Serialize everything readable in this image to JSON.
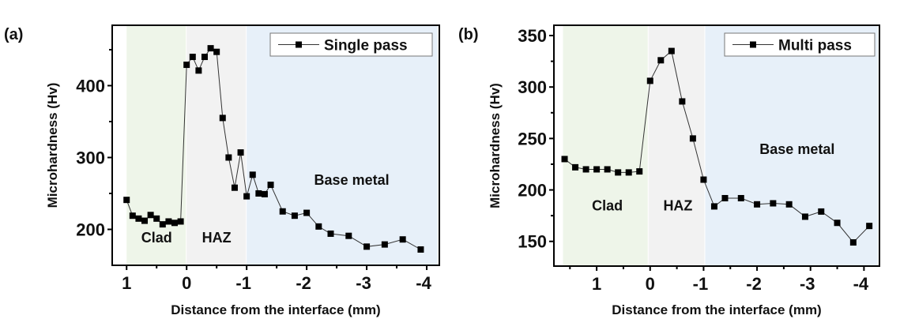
{
  "chart_data": [
    {
      "panel_label": "(a)",
      "type": "line",
      "title": "",
      "xlabel": "Distance from the interface (mm)",
      "ylabel": "Microhardness (Hv)",
      "xlim": [
        1.24,
        -4.21
      ],
      "ylim": [
        150,
        484
      ],
      "xticks": [
        1,
        0,
        -1,
        -2,
        -3,
        -4
      ],
      "xtick_labels": [
        "1",
        "0",
        "-1",
        "-2",
        "-3",
        "-4"
      ],
      "yticks": [
        200,
        300,
        400
      ],
      "ytick_labels": [
        "200",
        "300",
        "400"
      ],
      "y_minor_ticks": [
        250,
        350,
        450
      ],
      "x_minor_ticks": [
        0.5,
        -0.5,
        -1.5,
        -2.5,
        -3.5
      ],
      "grid": false,
      "legend_position": "top-right",
      "regions": [
        {
          "label": "Clad",
          "from": 1.0,
          "to": 0.0,
          "color": "#eef5e9",
          "label_x": 0.5,
          "label_y": 182
        },
        {
          "label": "HAZ",
          "from": 0.0,
          "to": -1.0,
          "color": "#f2f2f2",
          "label_x": -0.5,
          "label_y": 182
        },
        {
          "label": "Base metal",
          "from": -1.0,
          "to": -4.21,
          "color": "#e7f0f9",
          "label_x": -2.75,
          "label_y": 262
        }
      ],
      "series": [
        {
          "name": "Single pass",
          "color": "#000000",
          "x": [
            1.0,
            0.9,
            0.8,
            0.7,
            0.6,
            0.5,
            0.4,
            0.3,
            0.2,
            0.1,
            0.0,
            -0.1,
            -0.2,
            -0.3,
            -0.4,
            -0.5,
            -0.6,
            -0.7,
            -0.8,
            -0.9,
            -1.0,
            -1.1,
            -1.2,
            -1.3,
            -1.4,
            -1.6,
            -1.8,
            -2.0,
            -2.2,
            -2.4,
            -2.7,
            -3.0,
            -3.3,
            -3.6,
            -3.9
          ],
          "y": [
            241,
            219,
            215,
            212,
            220,
            215,
            207,
            211,
            209,
            211,
            429,
            440,
            421,
            440,
            452,
            447,
            355,
            300,
            258,
            307,
            246,
            276,
            250,
            249,
            262,
            225,
            219,
            223,
            204,
            194,
            191,
            176,
            179,
            186,
            172
          ]
        }
      ]
    },
    {
      "panel_label": "(b)",
      "type": "line",
      "title": "",
      "xlabel": "Distance from the interface (mm)",
      "ylabel": "Microhardness (Hv)",
      "xlim": [
        1.8,
        -4.29
      ],
      "ylim": [
        126,
        360
      ],
      "xticks": [
        1,
        0,
        -1,
        -2,
        -3,
        -4
      ],
      "xtick_labels": [
        "1",
        "0",
        "-1",
        "-2",
        "-3",
        "-4"
      ],
      "yticks": [
        150,
        200,
        250,
        300,
        350
      ],
      "ytick_labels": [
        "150",
        "200",
        "250",
        "300",
        "350"
      ],
      "y_minor_ticks": [
        175,
        225,
        275,
        325
      ],
      "x_minor_ticks": [
        1.5,
        0.5,
        -0.5,
        -1.5,
        -2.5,
        -3.5
      ],
      "grid": false,
      "legend_position": "top-right",
      "regions": [
        {
          "label": "Clad",
          "from": 1.63,
          "to": 0.03,
          "color": "#eef5e9",
          "label_x": 0.8,
          "label_y": 180
        },
        {
          "label": "HAZ",
          "from": 0.03,
          "to": -1.03,
          "color": "#f2f2f2",
          "label_x": -0.52,
          "label_y": 180
        },
        {
          "label": "Base metal",
          "from": -1.03,
          "to": -4.29,
          "color": "#e7f0f9",
          "label_x": -2.75,
          "label_y": 235
        }
      ],
      "series": [
        {
          "name": "Multi pass",
          "color": "#000000",
          "x": [
            1.6,
            1.4,
            1.2,
            1.0,
            0.8,
            0.6,
            0.4,
            0.2,
            0.0,
            -0.2,
            -0.4,
            -0.6,
            -0.8,
            -1.0,
            -1.2,
            -1.4,
            -1.7,
            -2.0,
            -2.3,
            -2.6,
            -2.9,
            -3.2,
            -3.5,
            -3.8,
            -4.1
          ],
          "y": [
            230,
            222,
            220,
            220,
            220,
            217,
            217,
            218,
            306,
            326,
            335,
            286,
            250,
            210,
            184,
            192,
            192,
            186,
            187,
            186,
            174,
            179,
            168,
            149,
            165
          ]
        }
      ]
    }
  ]
}
